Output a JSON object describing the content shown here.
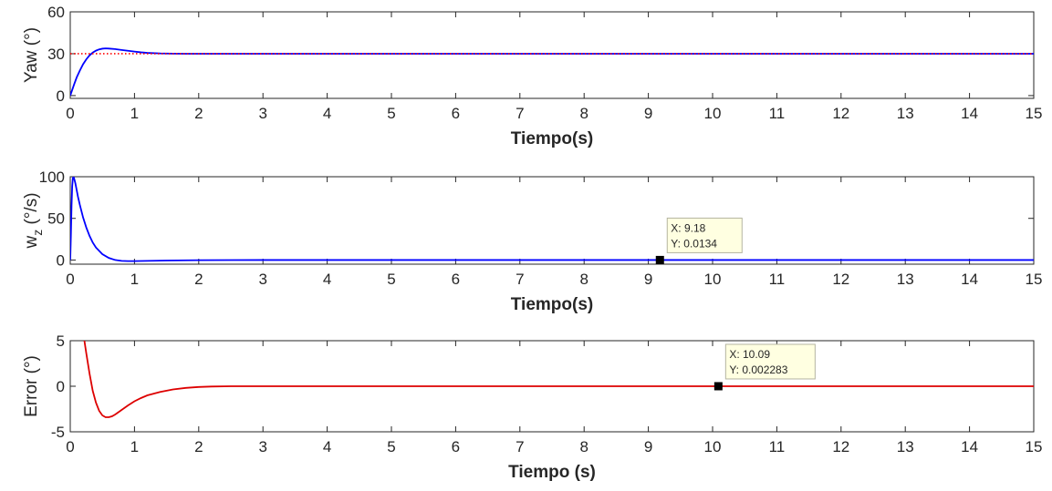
{
  "chart_data": [
    {
      "type": "line",
      "xlabel": "Tiempo(s)",
      "ylabel": "Yaw (°)",
      "xlim": [
        0,
        15
      ],
      "ylim": [
        -2,
        60
      ],
      "xticks": [
        "0",
        "1",
        "2",
        "3",
        "4",
        "5",
        "6",
        "7",
        "8",
        "9",
        "10",
        "11",
        "12",
        "13",
        "14",
        "15"
      ],
      "yticks": [
        "0",
        "30",
        "60"
      ],
      "grid": false,
      "series": [
        {
          "color": "#0000ff",
          "x": [
            0,
            0.03,
            0.06,
            0.1,
            0.15,
            0.2,
            0.25,
            0.3,
            0.35,
            0.4,
            0.45,
            0.5,
            0.55,
            0.6,
            0.7,
            0.8,
            0.9,
            1.0,
            1.1,
            1.2,
            1.4,
            1.6,
            1.8,
            2.0,
            2.5,
            3,
            15
          ],
          "values": [
            0,
            4,
            8,
            13,
            18,
            22.5,
            26,
            28.8,
            30.8,
            32.2,
            33.1,
            33.6,
            33.8,
            33.7,
            33.3,
            32.7,
            32.1,
            31.5,
            31.0,
            30.6,
            30.2,
            30.05,
            30.0,
            30.0,
            30.0,
            30.0,
            30.0
          ]
        },
        {
          "color": "#ff0000",
          "style": "dotted",
          "x": [
            0,
            15
          ],
          "values": [
            30,
            30
          ]
        }
      ]
    },
    {
      "type": "line",
      "xlabel": "Tiempo(s)",
      "ylabel": "w",
      "ylabel_sub": "z",
      "ylabel_suffix": " (°/s)",
      "xlim": [
        0,
        15
      ],
      "ylim": [
        -5,
        100
      ],
      "xticks": [
        "0",
        "1",
        "2",
        "3",
        "4",
        "5",
        "6",
        "7",
        "8",
        "9",
        "10",
        "11",
        "12",
        "13",
        "14",
        "15"
      ],
      "yticks": [
        "0",
        "50",
        "100"
      ],
      "grid": false,
      "series": [
        {
          "color": "#0000ff",
          "x": [
            0,
            0.01,
            0.02,
            0.03,
            0.04,
            0.05,
            0.06,
            0.08,
            0.1,
            0.12,
            0.15,
            0.2,
            0.25,
            0.3,
            0.35,
            0.4,
            0.5,
            0.6,
            0.7,
            0.8,
            0.9,
            1.0,
            1.2,
            1.5,
            2.0,
            3,
            5,
            9.18,
            15
          ],
          "values": [
            0,
            30,
            65,
            88,
            98,
            100,
            98,
            92,
            84,
            76,
            66,
            51,
            39,
            29,
            21,
            15,
            7,
            2.5,
            0,
            -1,
            -1.3,
            -1.3,
            -1,
            -0.6,
            -0.2,
            0,
            0,
            0.0134,
            0
          ]
        }
      ],
      "annotation": {
        "x": 9.18,
        "y": 0.0134,
        "line1": "X: 9.18",
        "line2": "Y: 0.0134"
      }
    },
    {
      "type": "line",
      "xlabel": "Tiempo (s)",
      "ylabel": "Error (°)",
      "xlim": [
        0,
        15
      ],
      "ylim": [
        -5,
        5
      ],
      "xticks": [
        "0",
        "1",
        "2",
        "3",
        "4",
        "5",
        "6",
        "7",
        "8",
        "9",
        "10",
        "11",
        "12",
        "13",
        "14",
        "15"
      ],
      "yticks": [
        "-5",
        "0",
        "5"
      ],
      "grid": false,
      "series": [
        {
          "color": "#dd0000",
          "x": [
            0.22,
            0.25,
            0.3,
            0.35,
            0.4,
            0.45,
            0.5,
            0.55,
            0.6,
            0.65,
            0.7,
            0.8,
            0.9,
            1.0,
            1.1,
            1.2,
            1.4,
            1.6,
            1.8,
            2.0,
            2.2,
            2.5,
            3,
            10.09,
            15
          ],
          "values": [
            5,
            3.6,
            1.4,
            -0.5,
            -1.8,
            -2.7,
            -3.2,
            -3.4,
            -3.4,
            -3.3,
            -3.1,
            -2.6,
            -2.1,
            -1.65,
            -1.3,
            -1.0,
            -0.62,
            -0.35,
            -0.18,
            -0.08,
            -0.03,
            0,
            0,
            0.002283,
            0
          ]
        }
      ],
      "annotation": {
        "x": 10.09,
        "y": 0.002283,
        "line1": "X: 10.09",
        "line2": "Y: 0.002283"
      }
    }
  ]
}
